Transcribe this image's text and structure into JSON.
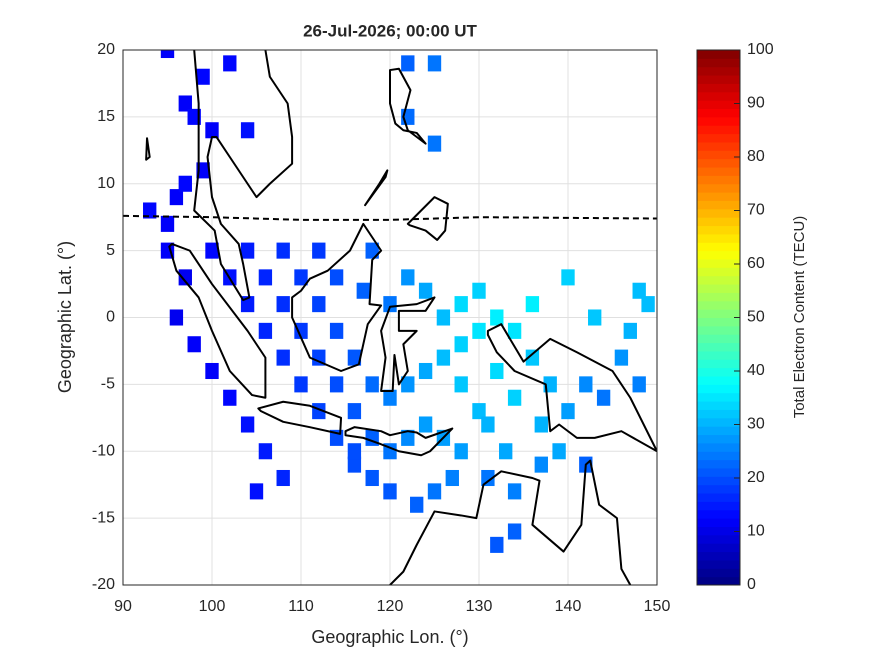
{
  "chart_data": {
    "type": "heatmap",
    "title": "26-Jul-2026; 00:00 UT",
    "xlabel": "Geographic Lon. (°)",
    "ylabel": "Geographic Lat. (°)",
    "xlim": [
      90,
      150
    ],
    "ylim": [
      -20,
      20
    ],
    "xticks": [
      90,
      100,
      110,
      120,
      130,
      140,
      150
    ],
    "yticks": [
      -20,
      -15,
      -10,
      -5,
      0,
      5,
      10,
      15,
      20
    ],
    "grid": true,
    "colormap": "jet",
    "colorbar": {
      "label": "Total Electron Content (TECU)",
      "lim": [
        0,
        100
      ],
      "ticks": [
        0,
        10,
        20,
        30,
        40,
        50,
        60,
        70,
        80,
        90,
        100
      ]
    },
    "x": [
      95,
      99,
      97,
      102,
      100,
      98,
      104,
      99,
      96,
      97,
      93,
      95,
      95,
      97,
      96,
      98,
      100,
      102,
      104,
      106,
      108,
      105,
      100,
      102,
      104,
      106,
      108,
      110,
      112,
      114,
      116,
      118,
      120,
      123,
      125,
      127,
      104,
      106,
      108,
      110,
      112,
      114,
      116,
      118,
      120,
      122,
      124,
      108,
      110,
      112,
      114,
      116,
      118,
      120,
      122,
      124,
      126,
      128,
      130,
      112,
      114,
      117,
      120,
      122,
      124,
      126,
      128,
      130,
      132,
      134,
      136,
      128,
      130,
      132,
      134,
      136,
      138,
      140,
      142,
      144,
      146,
      148,
      126,
      128,
      131,
      133,
      137,
      139,
      122,
      125,
      122,
      125,
      118,
      116,
      131,
      134,
      137,
      142,
      134,
      132,
      140,
      143,
      147,
      148,
      149
    ],
    "y": [
      20,
      18,
      16,
      19,
      14,
      15,
      14,
      11,
      9,
      10,
      8,
      7,
      5,
      3,
      0,
      -2,
      -4,
      -6,
      -8,
      -10,
      -12,
      -13,
      5,
      3,
      1,
      -1,
      -3,
      -5,
      -7,
      -9,
      -11,
      -12,
      -13,
      -14,
      -13,
      -12,
      5,
      3,
      1,
      -1,
      -3,
      -5,
      -7,
      -9,
      -10,
      -9,
      -8,
      5,
      3,
      1,
      -1,
      -3,
      -5,
      -6,
      -5,
      -4,
      -3,
      -2,
      -1,
      5,
      3,
      2,
      1,
      3,
      2,
      0,
      1,
      2,
      0,
      -1,
      1,
      -5,
      -7,
      -4,
      -6,
      -3,
      -5,
      -7,
      -5,
      -6,
      -3,
      -5,
      -9,
      -10,
      -8,
      -10,
      -8,
      -10,
      19,
      19,
      15,
      13,
      5,
      -10,
      -12,
      -13,
      -11,
      -11,
      -16,
      -17,
      3,
      0,
      -1,
      2,
      1
    ],
    "values": [
      12,
      13,
      12,
      13,
      12,
      13,
      14,
      12,
      12,
      13,
      13,
      12,
      12,
      11,
      11,
      12,
      12,
      13,
      14,
      15,
      16,
      14,
      13,
      14,
      15,
      16,
      17,
      18,
      19,
      20,
      20,
      21,
      21,
      22,
      24,
      25,
      15,
      16,
      17,
      18,
      19,
      20,
      21,
      22,
      24,
      26,
      28,
      17,
      18,
      19,
      20,
      21,
      23,
      25,
      27,
      29,
      31,
      33,
      35,
      18,
      20,
      22,
      24,
      27,
      29,
      31,
      34,
      33,
      36,
      35,
      36,
      32,
      31,
      34,
      33,
      32,
      30,
      28,
      26,
      24,
      27,
      25,
      28,
      28,
      30,
      29,
      30,
      29,
      22,
      24,
      23,
      24,
      22,
      20,
      24,
      25,
      26,
      22,
      22,
      21,
      33,
      32,
      30,
      31,
      31
    ]
  }
}
